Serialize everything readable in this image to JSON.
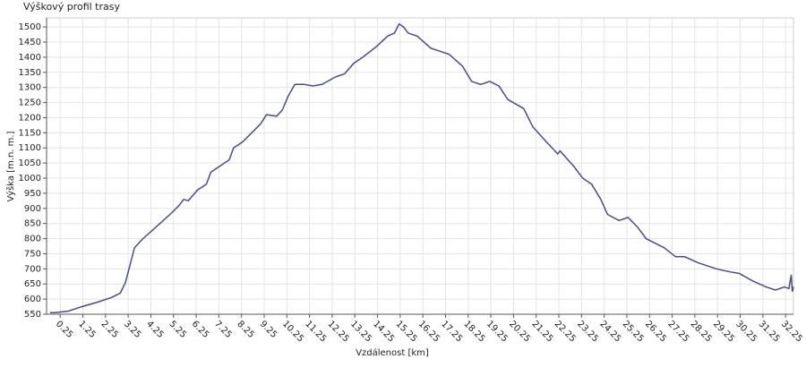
{
  "chart_data": {
    "type": "line",
    "title": "Výškový profil trasy",
    "x_label": "Vzdálenost [km]",
    "y_label": "Výška [m.n. m.]",
    "x": [
      -0.2,
      0,
      0.6,
      1.2,
      1.9,
      2.5,
      2.9,
      3.13,
      3.53,
      3.9,
      4.5,
      5.1,
      5.5,
      5.7,
      5.9,
      6.3,
      6.7,
      6.9,
      7.3,
      7.7,
      7.9,
      8.3,
      8.7,
      9.1,
      9.35,
      9.8,
      10.05,
      10.3,
      10.6,
      11.0,
      11.4,
      11.8,
      12.4,
      12.8,
      13.2,
      13.6,
      14.2,
      14.7,
      15.0,
      15.2,
      15.4,
      15.6,
      16.0,
      16.6,
      17.0,
      17.4,
      18.0,
      18.4,
      18.8,
      19.2,
      19.6,
      20.0,
      20.7,
      21.1,
      21.7,
      22.2,
      22.3,
      22.9,
      23.3,
      23.7,
      24.1,
      24.4,
      24.9,
      25.3,
      25.7,
      26.1,
      26.9,
      27.4,
      27.8,
      28.4,
      29.2,
      29.8,
      30.2,
      30.8,
      31.4,
      31.8,
      32.2,
      32.4,
      32.5,
      32.55,
      32.6
    ],
    "series": [
      {
        "name": "Výška",
        "color": "#4b4b8c",
        "values": [
          555,
          555,
          560,
          575,
          590,
          605,
          620,
          655,
          770,
          800,
          840,
          880,
          910,
          930,
          925,
          960,
          980,
          1020,
          1040,
          1060,
          1100,
          1120,
          1150,
          1180,
          1210,
          1205,
          1225,
          1270,
          1310,
          1310,
          1305,
          1310,
          1335,
          1345,
          1380,
          1400,
          1435,
          1470,
          1480,
          1510,
          1500,
          1480,
          1470,
          1430,
          1420,
          1410,
          1370,
          1320,
          1310,
          1320,
          1305,
          1260,
          1230,
          1170,
          1120,
          1080,
          1090,
          1040,
          1000,
          980,
          930,
          880,
          860,
          870,
          840,
          800,
          770,
          740,
          740,
          720,
          700,
          690,
          685,
          660,
          640,
          630,
          640,
          635,
          680,
          625,
          640
        ]
      }
    ],
    "xlim": [
      -0.35,
      32.6
    ],
    "ylim": [
      550,
      1530
    ],
    "xticks": [
      0.25,
      1.25,
      2.25,
      3.25,
      4.25,
      5.25,
      6.25,
      7.25,
      8.25,
      9.25,
      10.25,
      11.25,
      12.25,
      13.25,
      14.25,
      15.25,
      16.25,
      17.25,
      18.25,
      19.25,
      20.25,
      21.25,
      22.25,
      23.25,
      24.25,
      25.25,
      26.25,
      27.25,
      28.25,
      29.25,
      30.25,
      31.25,
      32.25
    ],
    "yticks": [
      550,
      600,
      650,
      700,
      750,
      800,
      850,
      900,
      950,
      1000,
      1050,
      1100,
      1150,
      1200,
      1250,
      1300,
      1350,
      1400,
      1450,
      1500
    ],
    "grid": true
  }
}
